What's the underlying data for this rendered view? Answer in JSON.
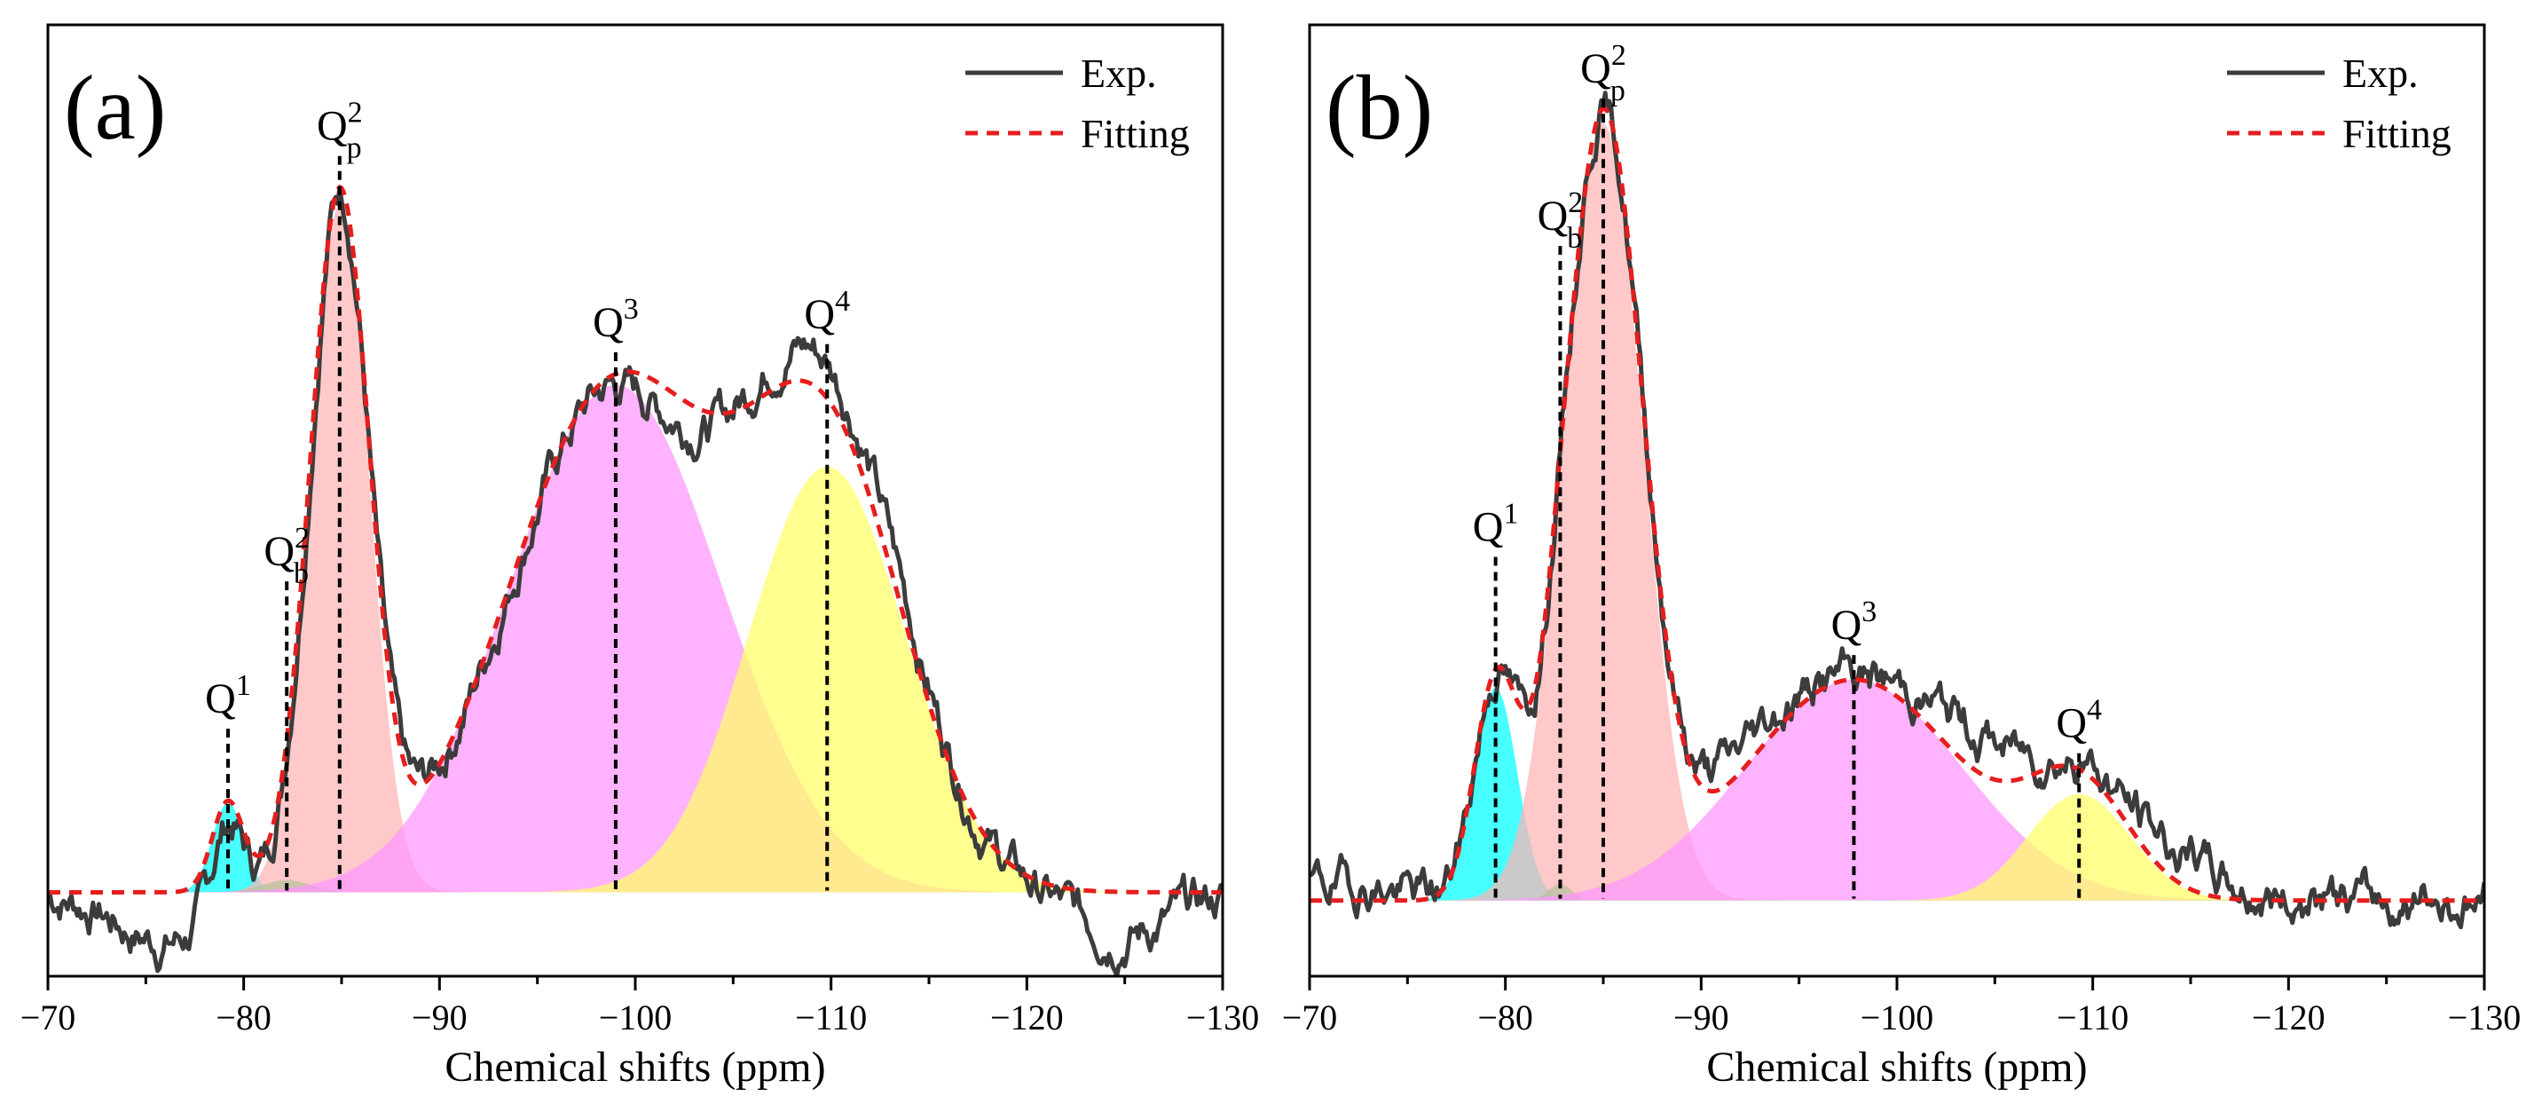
{
  "chart_data": [
    {
      "type": "line",
      "panel": "(a)",
      "xlabel": "Chemical shifts (ppm)",
      "xlim": [
        -70,
        -130
      ],
      "xticks": [
        -70,
        -80,
        -90,
        -100,
        -110,
        -120,
        -130
      ],
      "xtick_labels": [
        "−70",
        "−80",
        "−90",
        "−100",
        "−110",
        "−120",
        "−130"
      ],
      "baseline": 0.07,
      "legend": {
        "position": "top-right",
        "entries": [
          {
            "label": "Exp.",
            "style": "solid",
            "color": "#3c3c3c"
          },
          {
            "label": "Fitting",
            "style": "dashed",
            "color": "#e61e1e"
          }
        ]
      },
      "components": [
        {
          "name": "Q1",
          "sup": "1",
          "sub": "",
          "center": -79.2,
          "height": 0.11,
          "width": 0.8,
          "color": "#00ffff"
        },
        {
          "name": "Q2b",
          "sup": "2",
          "sub": "b",
          "center": -82.2,
          "height": 0.015,
          "width": 1.2,
          "color": "#00dd66"
        },
        {
          "name": "Q2p",
          "sup": "2",
          "sub": "p",
          "center": -84.9,
          "height": 0.84,
          "width": 1.5,
          "color": "#ffb4b4"
        },
        {
          "name": "Q3",
          "sup": "3",
          "sub": "",
          "center": -99.0,
          "height": 0.62,
          "width": 5.4,
          "color": "#ff96ff"
        },
        {
          "name": "Q4",
          "sup": "4",
          "sub": "",
          "center": -109.8,
          "height": 0.52,
          "width": 4.0,
          "color": "#ffff64"
        }
      ],
      "peak_markers": [
        {
          "name": "Q1",
          "x": -79.2,
          "top": 0.27
        },
        {
          "name": "Q2b",
          "x": -82.2,
          "top": 0.45
        },
        {
          "name": "Q2p",
          "x": -84.9,
          "top": 0.97
        },
        {
          "name": "Q3",
          "x": -99.0,
          "top": 0.73
        },
        {
          "name": "Q4",
          "x": -109.8,
          "top": 0.74
        }
      ],
      "exp_noise_seed": 7,
      "exp_offsets": [
        {
          "x": -76,
          "dy": -0.06
        },
        {
          "x": -102,
          "dy": -0.03
        },
        {
          "x": -108,
          "dy": 0.04
        },
        {
          "x": -113,
          "dy": 0.03
        },
        {
          "x": -125,
          "dy": -0.05
        }
      ]
    },
    {
      "type": "line",
      "panel": "(b)",
      "xlabel": "Chemical shifts (ppm)",
      "xlim": [
        -70,
        -130
      ],
      "xticks": [
        -70,
        -80,
        -90,
        -100,
        -110,
        -120,
        -130
      ],
      "xtick_labels": [
        "−70",
        "−80",
        "−90",
        "−100",
        "−110",
        "−120",
        "−130"
      ],
      "baseline": 0.06,
      "legend": {
        "position": "top-right",
        "entries": [
          {
            "label": "Exp.",
            "style": "solid",
            "color": "#3c3c3c"
          },
          {
            "label": "Fitting",
            "style": "dashed",
            "color": "#e61e1e"
          }
        ]
      },
      "components": [
        {
          "name": "Q1",
          "sup": "1",
          "sub": "",
          "center": -79.5,
          "height": 0.26,
          "width": 1.1,
          "color": "#00ffff"
        },
        {
          "name": "Q2b",
          "sup": "2",
          "sub": "b",
          "center": -82.8,
          "height": 0.02,
          "width": 0.6,
          "color": "#00dd66"
        },
        {
          "name": "Q2p",
          "sup": "2",
          "sub": "p",
          "center": -85.0,
          "height": 0.95,
          "width": 2.0,
          "color": "#ffb4b4"
        },
        {
          "name": "Q3",
          "sup": "3",
          "sub": "",
          "center": -97.8,
          "height": 0.27,
          "width": 5.5,
          "color": "#ff96ff"
        },
        {
          "name": "Q4",
          "sup": "4",
          "sub": "",
          "center": -109.3,
          "height": 0.13,
          "width": 2.6,
          "color": "#ffff64"
        }
      ],
      "peak_markers": [
        {
          "name": "Q1",
          "x": -79.5,
          "top": 0.48
        },
        {
          "name": "Q2b",
          "x": -82.8,
          "top": 0.86
        },
        {
          "name": "Q2p",
          "x": -85.0,
          "top": 1.04
        },
        {
          "name": "Q3",
          "x": -97.8,
          "top": 0.36
        },
        {
          "name": "Q4",
          "x": -109.3,
          "top": 0.24
        }
      ],
      "exp_noise_seed": 19,
      "exp_offsets": [
        {
          "x": -72,
          "dy": 0.02
        },
        {
          "x": -92,
          "dy": 0.03
        },
        {
          "x": -104,
          "dy": 0.05
        },
        {
          "x": -114,
          "dy": 0.04
        }
      ]
    }
  ]
}
